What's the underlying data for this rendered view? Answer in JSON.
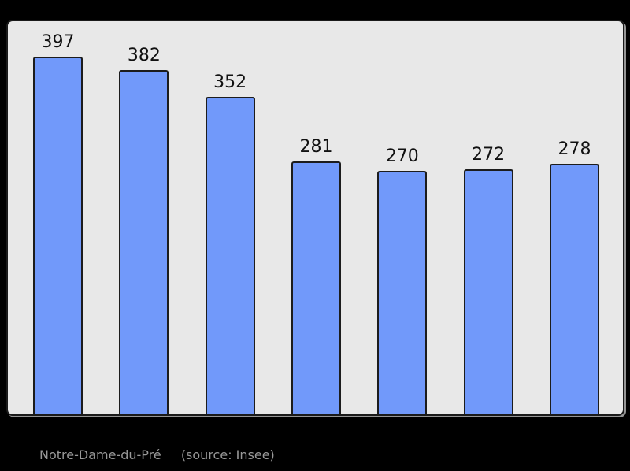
{
  "page": {
    "background_color": "#000000"
  },
  "chart_data": {
    "type": "bar",
    "values": [
      397,
      382,
      352,
      281,
      270,
      272,
      278
    ],
    "data_labels": [
      "397",
      "382",
      "352",
      "281",
      "270",
      "272",
      "278"
    ],
    "title": "",
    "xlabel": "",
    "ylabel": "",
    "ylim": [
      0,
      440
    ],
    "grid": false,
    "legend": false,
    "layout": "vertical bars, data labels above each bar, no visible axes or tick labels",
    "bar_color": "#7199fa",
    "bar_border_color": "#1c1c1c",
    "plot_background": "#e8e8e8",
    "plot_border_color": "#1a1a1a",
    "label_color": "#111111"
  },
  "caption": {
    "commune": "Notre-Dame-du-Pré",
    "source": "(source: Insee)",
    "color": "#989898"
  }
}
